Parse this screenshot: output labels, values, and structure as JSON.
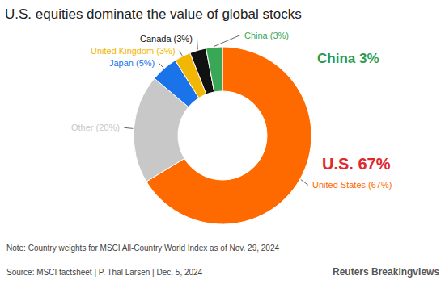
{
  "chart_data": {
    "type": "pie",
    "title": "U.S. equities dominate the value of global stocks",
    "categories": [
      "United States",
      "Other",
      "Japan",
      "United Kingdom",
      "Canada",
      "China"
    ],
    "values": [
      67,
      20,
      5,
      3,
      3,
      3
    ],
    "value_labels": [
      "United States (67%)",
      "Other (20%)",
      "Japan (5%)",
      "United Kingdom (3%)",
      "Canada (3%)",
      "China (3%)"
    ],
    "colors": [
      "#fe6a00",
      "#c8c8c8",
      "#1a73e8",
      "#f2b705",
      "#111111",
      "#3aa757"
    ],
    "data_labels": true,
    "annotations": [
      {
        "text": "China 3%",
        "color": "#2e9b4f"
      },
      {
        "text": "U.S. 67%",
        "color": "#e0282e"
      }
    ],
    "note": "Note: Country weights for MSCI All-Country World Index as of Nov. 29, 2024",
    "source": "Source: MSCI factsheet | P. Thal Larsen | Dec. 5, 2024",
    "credit": "Reuters Breakingviews"
  }
}
